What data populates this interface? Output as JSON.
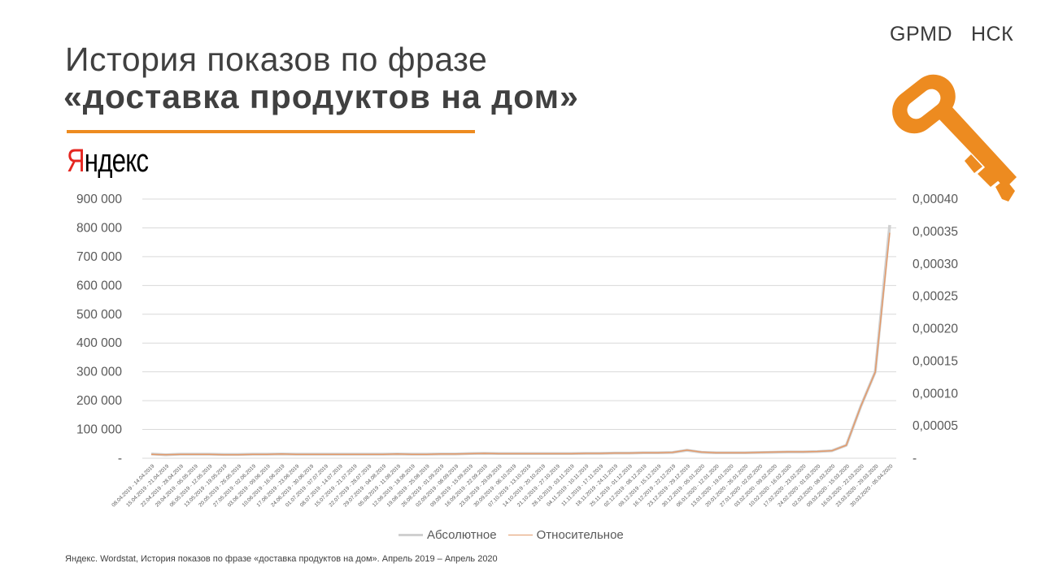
{
  "header": {
    "title_line1": "История показов по фразе",
    "title_line2": "«доставка продуктов на дом»",
    "brand_first": "Я",
    "brand_rest": "ндекс",
    "logo_left": "GPMD",
    "logo_right": "НСК"
  },
  "colors": {
    "accent": "#ed8b20",
    "absolute": "#d0d0d0",
    "relative": "#e39a6a",
    "grid": "#d9d9d9"
  },
  "footer": {
    "source": "Яндекс. Wordstat, История показов по фразе «доставка продуктов на дом». Апрель 2019 – Апрель 2020"
  },
  "chart_data": {
    "type": "line",
    "categories": [
      "08.04.2019 - 14.04.2019",
      "15.04.2019 - 21.04.2019",
      "22.04.2019 - 28.04.2019",
      "29.04.2019 - 05.05.2019",
      "06.05.2019 - 12.05.2019",
      "13.05.2019 - 19.05.2019",
      "20.05.2019 - 26.05.2019",
      "27.05.2019 - 02.06.2019",
      "03.06.2019 - 09.06.2019",
      "10.06.2019 - 16.06.2019",
      "17.06.2019 - 23.06.2019",
      "24.06.2019 - 30.06.2019",
      "01.07.2019 - 07.07.2019",
      "08.07.2019 - 14.07.2019",
      "15.07.2019 - 21.07.2019",
      "22.07.2019 - 28.07.2019",
      "29.07.2019 - 04.08.2019",
      "05.08.2019 - 11.08.2019",
      "12.08.2019 - 18.08.2019",
      "19.08.2019 - 25.08.2019",
      "26.08.2019 - 01.09.2019",
      "02.09.2019 - 08.09.2019",
      "09.09.2019 - 15.09.2019",
      "16.09.2019 - 22.09.2019",
      "23.09.2019 - 29.09.2019",
      "30.09.2019 - 06.10.2019",
      "07.10.2019 - 13.10.2019",
      "14.10.2019 - 20.10.2019",
      "21.10.2019 - 27.10.2019",
      "28.10.2019 - 03.11.2019",
      "04.11.2019 - 10.11.2019",
      "11.11.2019 - 17.11.2019",
      "18.11.2019 - 24.11.2019",
      "25.11.2019 - 01.12.2019",
      "02.12.2019 - 08.12.2019",
      "09.12.2019 - 15.12.2019",
      "16.12.2019 - 22.12.2019",
      "23.12.2019 - 29.12.2019",
      "30.12.2019 - 05.01.2020",
      "06.01.2020 - 12.01.2020",
      "13.01.2020 - 19.01.2020",
      "20.01.2020 - 26.01.2020",
      "27.01.2020 - 02.02.2020",
      "03.02.2020 - 09.02.2020",
      "10.02.2020 - 16.02.2020",
      "17.02.2020 - 23.02.2020",
      "24.02.2020 - 01.03.2020",
      "02.03.2020 - 08.03.2020",
      "09.03.2020 - 15.03.2020",
      "16.03.2020 - 22.03.2020",
      "23.03.2020 - 29.03.2020",
      "30.03.2020 - 05.04.2020"
    ],
    "series": [
      {
        "name": "Абсолютное",
        "axis": "left",
        "values": [
          15000,
          12000,
          14000,
          14000,
          14000,
          13000,
          13000,
          14000,
          14000,
          15000,
          14000,
          14000,
          14000,
          14000,
          14000,
          14000,
          14000,
          15000,
          14000,
          14000,
          15000,
          15000,
          16000,
          17000,
          16000,
          16000,
          16000,
          16000,
          16000,
          16000,
          17000,
          17000,
          18000,
          18000,
          19000,
          19000,
          20000,
          28000,
          21000,
          19000,
          19000,
          19000,
          20000,
          21000,
          22000,
          22000,
          23000,
          26000,
          45000,
          180000,
          300000,
          810000
        ]
      },
      {
        "name": "Относительное",
        "axis": "right",
        "values": [
          6e-06,
          5.5e-06,
          6e-06,
          6e-06,
          6e-06,
          5.5e-06,
          5.5e-06,
          6e-06,
          6e-06,
          6.5e-06,
          6e-06,
          6e-06,
          6e-06,
          6e-06,
          6e-06,
          6e-06,
          6e-06,
          6.5e-06,
          6e-06,
          6e-06,
          6.5e-06,
          6.5e-06,
          7e-06,
          7.5e-06,
          7e-06,
          7e-06,
          7e-06,
          7e-06,
          7e-06,
          7e-06,
          7.5e-06,
          7.5e-06,
          8e-06,
          8e-06,
          8.5e-06,
          8.5e-06,
          9e-06,
          1.25e-05,
          9.5e-06,
          8.5e-06,
          8.5e-06,
          8.5e-06,
          9e-06,
          9.5e-06,
          1e-05,
          1e-05,
          1.05e-05,
          1.15e-05,
          2e-05,
          8e-05,
          0.000133,
          0.000348
        ]
      }
    ],
    "y_left": {
      "min": 0,
      "max": 900000,
      "ticks": [
        "-",
        "100 000",
        "200 000",
        "300 000",
        "400 000",
        "500 000",
        "600 000",
        "700 000",
        "800 000",
        "900 000"
      ]
    },
    "y_right": {
      "min": 0,
      "max": 0.0004,
      "ticks": [
        "-",
        "0,00005",
        "0,00010",
        "0,00015",
        "0,00020",
        "0,00025",
        "0,00030",
        "0,00035",
        "0,00040"
      ]
    },
    "grid": true,
    "legend": "bottom"
  }
}
